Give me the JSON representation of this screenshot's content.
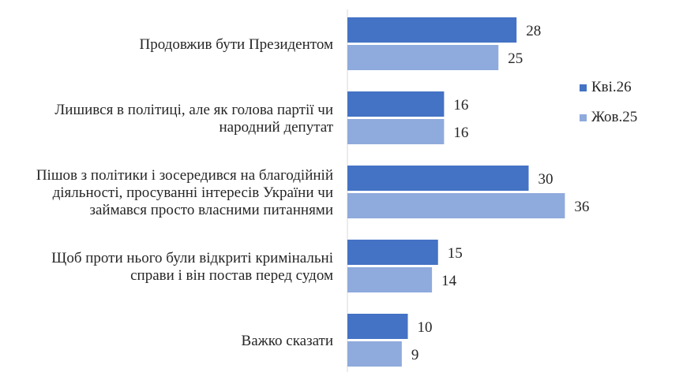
{
  "chart_data": {
    "type": "bar",
    "orientation": "horizontal",
    "categories": [
      "Продовжив бути Президентом",
      "Лишився в політиці, але як голова партії чи народний депутат",
      "Пішов з політики і зосередився на благодійній діяльності, просуванні інтересів України чи займався просто власними питаннями",
      "Щоб проти нього були відкриті кримінальні справи і він постав перед судом",
      "Важко сказати"
    ],
    "series": [
      {
        "name": "Кві.26",
        "color": "#4472C4",
        "values": [
          28,
          16,
          30,
          15,
          10
        ]
      },
      {
        "name": "Жов.25",
        "color": "#8FAADC",
        "values": [
          25,
          16,
          36,
          14,
          9
        ]
      }
    ],
    "xlim": [
      0,
      36
    ],
    "grid": false,
    "legend_position": "right"
  }
}
